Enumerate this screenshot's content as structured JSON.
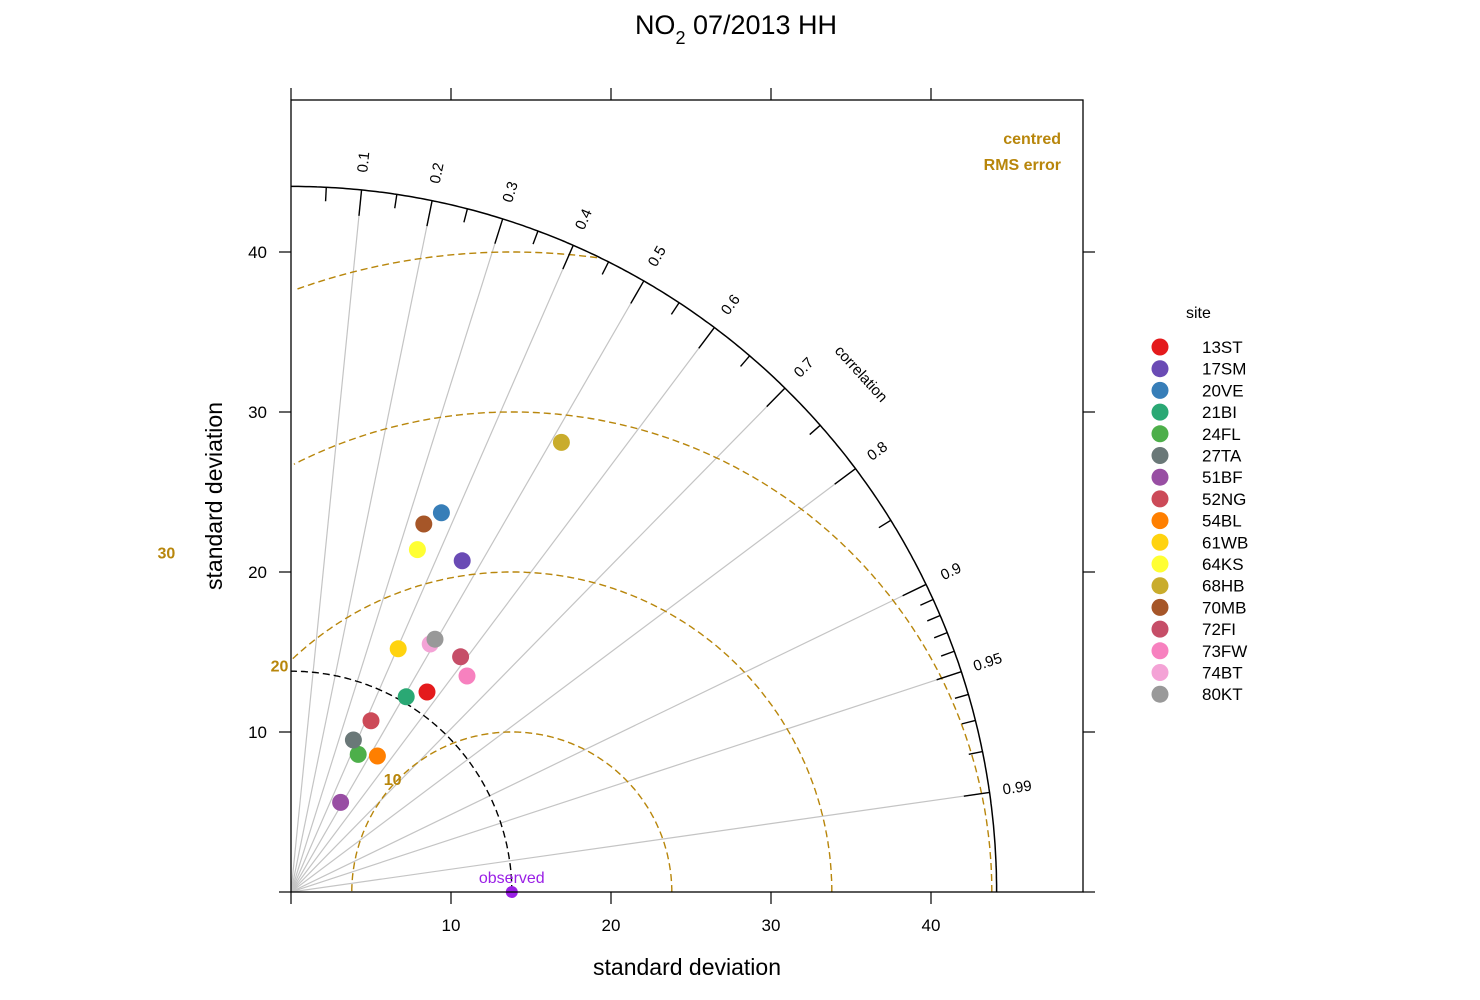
{
  "chart_data": {
    "type": "scatter",
    "subtype": "taylor-diagram",
    "title": "NO",
    "title_sub": "2",
    "title_rest": " 07/2013 HH",
    "xlabel": "standard deviation",
    "ylabel": "standard deviation",
    "xlim": [
      0,
      49.5
    ],
    "ylim": [
      0,
      49.5
    ],
    "x_ticks": [
      "10",
      "20",
      "30",
      "40"
    ],
    "y_ticks": [
      "10",
      "20",
      "30",
      "40"
    ],
    "max_sd": 44.1,
    "observed": {
      "label": "observed",
      "sd": 13.8,
      "color": "#9a1fe6"
    },
    "correlation_title": "correlation",
    "correlation_labels": [
      "0.1",
      "0.2",
      "0.3",
      "0.4",
      "0.5",
      "0.6",
      "0.7",
      "0.8",
      "0.9",
      "0.95",
      "0.99"
    ],
    "rms_title_line1": "centred",
    "rms_title_line2": "RMS error",
    "rms_color": "#b8860b",
    "rms_contours": [
      10,
      20,
      30,
      40
    ],
    "rms_labels": [
      "10",
      "20",
      "30"
    ],
    "legend_title": "site",
    "legend_position": "right",
    "series": [
      {
        "name": "13ST",
        "x": 8.5,
        "y": 12.5,
        "color": "#e41a1c"
      },
      {
        "name": "17SM",
        "x": 10.7,
        "y": 20.7,
        "color": "#6a4bb5"
      },
      {
        "name": "20VE",
        "x": 9.4,
        "y": 23.7,
        "color": "#377eb8"
      },
      {
        "name": "21BI",
        "x": 7.2,
        "y": 12.2,
        "color": "#2aa874"
      },
      {
        "name": "24FL",
        "x": 4.2,
        "y": 8.6,
        "color": "#4daf4a"
      },
      {
        "name": "27TA",
        "x": 3.9,
        "y": 9.5,
        "color": "#6a7878"
      },
      {
        "name": "51BF",
        "x": 3.1,
        "y": 5.6,
        "color": "#984ea3"
      },
      {
        "name": "52NG",
        "x": 5.0,
        "y": 10.7,
        "color": "#cc4a58"
      },
      {
        "name": "54BL",
        "x": 5.4,
        "y": 8.5,
        "color": "#ff7f00"
      },
      {
        "name": "61WB",
        "x": 6.7,
        "y": 15.2,
        "color": "#ffd30f"
      },
      {
        "name": "64KS",
        "x": 7.9,
        "y": 21.4,
        "color": "#ffff33"
      },
      {
        "name": "68HB",
        "x": 16.9,
        "y": 28.1,
        "color": "#c9ac2c"
      },
      {
        "name": "70MB",
        "x": 8.3,
        "y": 23.0,
        "color": "#a65628"
      },
      {
        "name": "72FI",
        "x": 10.6,
        "y": 14.7,
        "color": "#c64e68"
      },
      {
        "name": "73FW",
        "x": 11.0,
        "y": 13.5,
        "color": "#f781bf"
      },
      {
        "name": "74BT",
        "x": 8.7,
        "y": 15.5,
        "color": "#f4a3d6"
      },
      {
        "name": "80KT",
        "x": 9.0,
        "y": 15.8,
        "color": "#999999"
      }
    ]
  }
}
